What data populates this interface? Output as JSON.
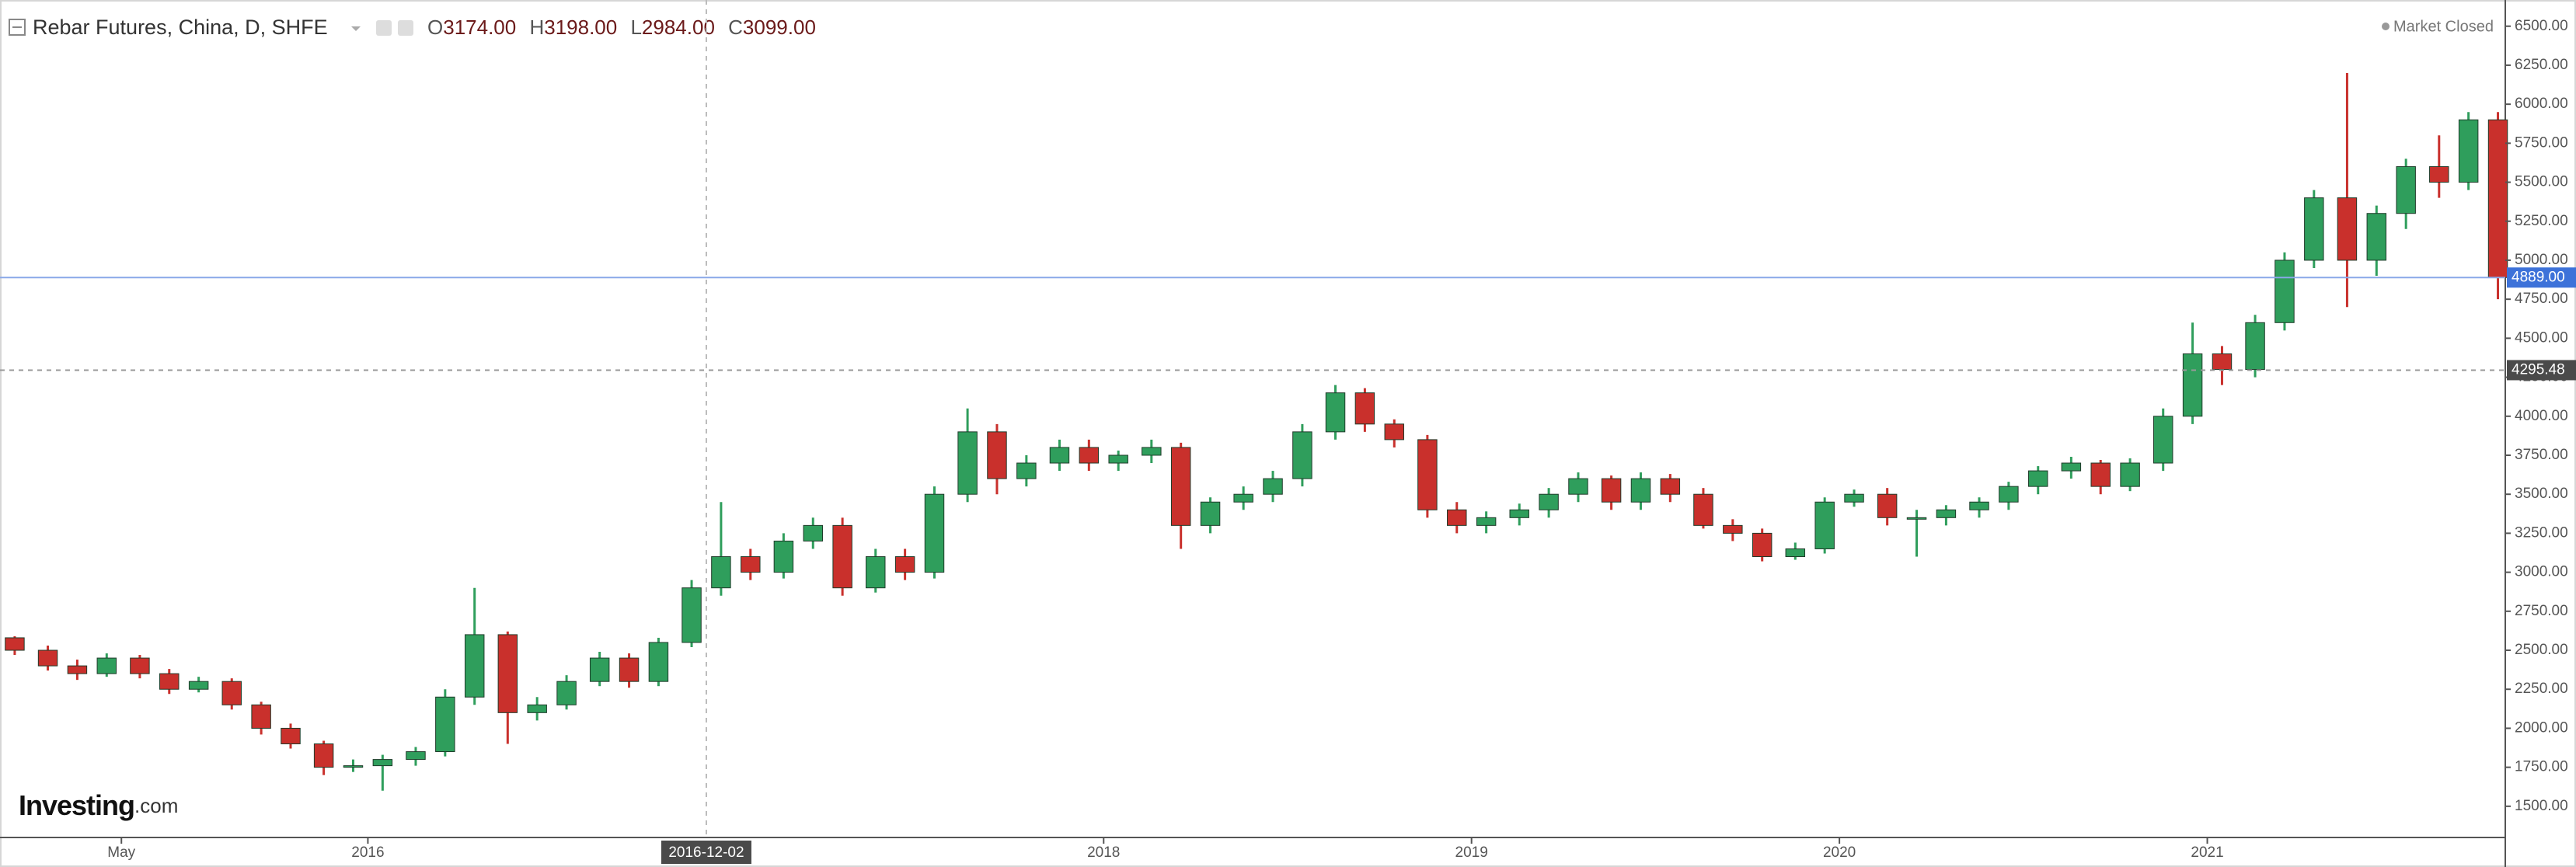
{
  "chart_data": {
    "type": "candlestick",
    "title": "Rebar Futures, China, D, SHFE",
    "ohlc_readout": [
      {
        "key": "O",
        "value": "3174.00"
      },
      {
        "key": "H",
        "value": "3198.00"
      },
      {
        "key": "L",
        "value": "2984.00"
      },
      {
        "key": "C",
        "value": "3099.00"
      }
    ],
    "status": "Market Closed",
    "logo": {
      "brand": "Investing",
      "suffix": ".com"
    },
    "up_color": "#2f9e5c",
    "down_color": "#c9302c",
    "x": [
      2015.04,
      2015.13,
      2015.21,
      2015.29,
      2015.38,
      2015.46,
      2015.54,
      2015.63,
      2015.71,
      2015.79,
      2015.88,
      2015.96,
      2016.04,
      2016.13,
      2016.21,
      2016.29,
      2016.38,
      2016.46,
      2016.54,
      2016.63,
      2016.71,
      2016.79,
      2016.88,
      2016.96,
      2017.04,
      2017.13,
      2017.21,
      2017.29,
      2017.38,
      2017.46,
      2017.54,
      2017.63,
      2017.71,
      2017.79,
      2017.88,
      2017.96,
      2018.04,
      2018.13,
      2018.21,
      2018.29,
      2018.38,
      2018.46,
      2018.54,
      2018.63,
      2018.71,
      2018.79,
      2018.88,
      2018.96,
      2019.04,
      2019.13,
      2019.21,
      2019.29,
      2019.38,
      2019.46,
      2019.54,
      2019.63,
      2019.71,
      2019.79,
      2019.88,
      2019.96,
      2020.04,
      2020.13,
      2020.21,
      2020.29,
      2020.38,
      2020.46,
      2020.54,
      2020.63,
      2020.71,
      2020.79,
      2020.88,
      2020.96,
      2021.04,
      2021.13,
      2021.21,
      2021.29,
      2021.38,
      2021.46,
      2021.54,
      2021.63,
      2021.71,
      2021.79
    ],
    "open": [
      2580,
      2500,
      2400,
      2350,
      2450,
      2350,
      2250,
      2300,
      2150,
      2000,
      1900,
      1750,
      1760,
      1800,
      1850,
      2200,
      2600,
      2100,
      2150,
      2300,
      2450,
      2300,
      2550,
      2900,
      3100,
      3000,
      3200,
      3300,
      2900,
      3100,
      3000,
      3500,
      3900,
      3600,
      3700,
      3800,
      3700,
      3750,
      3800,
      3300,
      3450,
      3500,
      3600,
      3900,
      4150,
      3950,
      3850,
      3400,
      3300,
      3350,
      3400,
      3500,
      3600,
      3450,
      3600,
      3500,
      3300,
      3250,
      3100,
      3150,
      3450,
      3500,
      3350,
      3350,
      3400,
      3450,
      3550,
      3650,
      3700,
      3550,
      3700,
      4000,
      4400,
      4300,
      4600,
      5000,
      5400,
      5000,
      5300,
      5600,
      5500,
      5900
    ],
    "high": [
      2590,
      2530,
      2440,
      2480,
      2470,
      2380,
      2330,
      2320,
      2170,
      2030,
      1920,
      1800,
      1830,
      1880,
      2250,
      2900,
      2620,
      2200,
      2340,
      2490,
      2480,
      2580,
      2950,
      3450,
      3150,
      3250,
      3350,
      3350,
      3150,
      3150,
      3550,
      4050,
      3950,
      3750,
      3850,
      3850,
      3780,
      3850,
      3830,
      3480,
      3550,
      3650,
      3950,
      4200,
      4180,
      3980,
      3880,
      3450,
      3390,
      3440,
      3540,
      3640,
      3620,
      3640,
      3630,
      3540,
      3340,
      3280,
      3190,
      3480,
      3530,
      3540,
      3400,
      3430,
      3480,
      3580,
      3680,
      3740,
      3720,
      3730,
      4050,
      4600,
      4450,
      4650,
      5050,
      5450,
      6200,
      5350,
      5650,
      5800,
      5950,
      5950
    ],
    "low": [
      2470,
      2370,
      2310,
      2330,
      2320,
      2220,
      2230,
      2120,
      1960,
      1870,
      1700,
      1720,
      1600,
      1760,
      1820,
      2150,
      1900,
      2050,
      2120,
      2270,
      2260,
      2270,
      2520,
      2850,
      2950,
      2960,
      3150,
      2850,
      2870,
      2950,
      2960,
      3450,
      3500,
      3550,
      3650,
      3650,
      3650,
      3700,
      3150,
      3250,
      3400,
      3450,
      3550,
      3850,
      3900,
      3800,
      3350,
      3250,
      3250,
      3300,
      3350,
      3450,
      3400,
      3400,
      3450,
      3280,
      3200,
      3070,
      3080,
      3120,
      3420,
      3300,
      3100,
      3300,
      3350,
      3400,
      3500,
      3600,
      3500,
      3520,
      3650,
      3950,
      4200,
      4250,
      4550,
      4950,
      4700,
      4900,
      5200,
      5400,
      5450,
      4750
    ],
    "close": [
      2500,
      2400,
      2350,
      2450,
      2350,
      2250,
      2300,
      2150,
      2000,
      1900,
      1750,
      1760,
      1800,
      1850,
      2200,
      2600,
      2100,
      2150,
      2300,
      2450,
      2300,
      2550,
      2900,
      3100,
      3000,
      3200,
      3300,
      2900,
      3100,
      3000,
      3500,
      3900,
      3600,
      3700,
      3800,
      3700,
      3750,
      3800,
      3300,
      3450,
      3500,
      3600,
      3900,
      4150,
      3950,
      3850,
      3400,
      3300,
      3350,
      3400,
      3500,
      3600,
      3450,
      3600,
      3500,
      3300,
      3250,
      3100,
      3150,
      3450,
      3500,
      3350,
      3350,
      3400,
      3450,
      3550,
      3650,
      3700,
      3550,
      3700,
      4000,
      4400,
      4300,
      4600,
      5000,
      5400,
      5000,
      5300,
      5600,
      5500,
      5900,
      4889
    ],
    "xlim": [
      2015.0,
      2021.81
    ],
    "ylim": [
      1300,
      6668
    ],
    "xticks": [
      {
        "value": 2015.33,
        "label": "May"
      },
      2016,
      2018,
      2019,
      2020,
      2021
    ],
    "yticks": [
      {
        "value": 1500,
        "label": "1500.00"
      },
      {
        "value": 1750,
        "label": "1750.00"
      },
      {
        "value": 2000,
        "label": "2000.00"
      },
      {
        "value": 2250,
        "label": "2250.00"
      },
      {
        "value": 2500,
        "label": "2500.00"
      },
      {
        "value": 2750,
        "label": "2750.00"
      },
      {
        "value": 3000,
        "label": "3000.00"
      },
      {
        "value": 3250,
        "label": "3250.00"
      },
      {
        "value": 3500,
        "label": "3500.00"
      },
      {
        "value": 3750,
        "label": "3750.00"
      },
      {
        "value": 4000,
        "label": "4000.00"
      },
      {
        "value": 4250,
        "label": "4250.00"
      },
      {
        "value": 4500,
        "label": "4500.00"
      },
      {
        "value": 4750,
        "label": "4750.00"
      },
      {
        "value": 5000,
        "label": "5000.00"
      },
      {
        "value": 5250,
        "label": "5250.00"
      },
      {
        "value": 5500,
        "label": "5500.00"
      },
      {
        "value": 5750,
        "label": "5750.00"
      },
      {
        "value": 6000,
        "label": "6000.00"
      },
      {
        "value": 6250,
        "label": "6250.00"
      },
      {
        "value": 6500,
        "label": "6500.00"
      }
    ],
    "last_price": {
      "value": 4889,
      "label": "4889.00"
    },
    "crosshair": {
      "x": {
        "value": 2016.92,
        "label": "2016-12-02"
      },
      "y": 4295.48
    }
  }
}
